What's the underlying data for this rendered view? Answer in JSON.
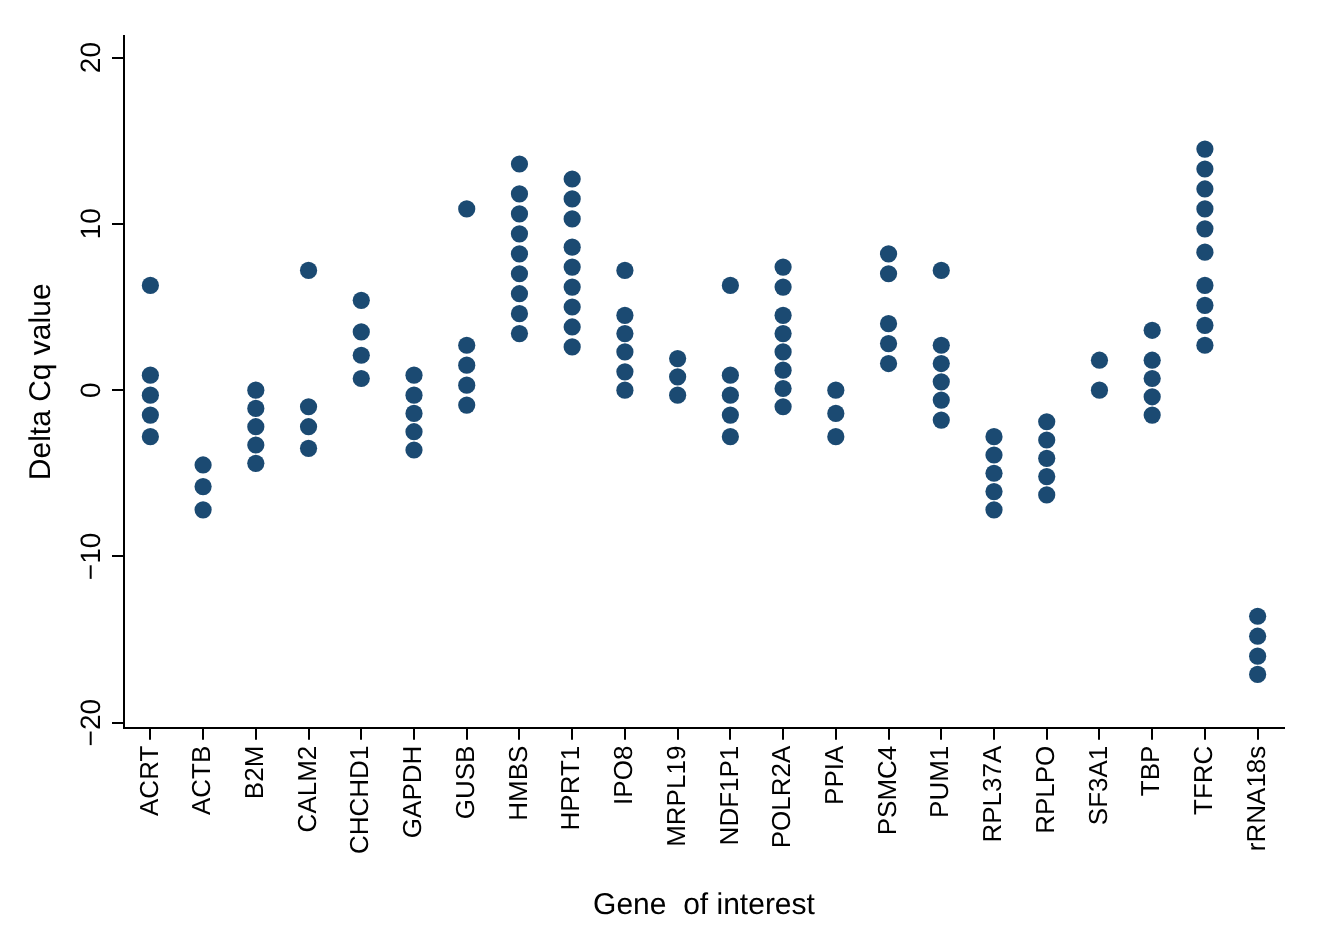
{
  "chart_data": {
    "type": "scatter",
    "xlabel": "Gene  of interest",
    "ylabel": "Delta Cq value",
    "categories": [
      "ACRT",
      "ACTB",
      "B2M",
      "CALM2",
      "CHCHD1",
      "GAPDH",
      "GUSB",
      "HMBS",
      "HPRT1",
      "IPO8",
      "MRPL19",
      "NDF1P1",
      "POLR2A",
      "PPIA",
      "PSMC4",
      "PUM1",
      "RPL37A",
      "RPLPO",
      "SF3A1",
      "TBP",
      "TFRC",
      "rRNA18s"
    ],
    "series": [
      {
        "color": "#1b4a72",
        "x": [
          "ACRT",
          "ACRT",
          "ACRT",
          "ACRT",
          "ACRT",
          "ACTB",
          "ACTB",
          "ACTB",
          "B2M",
          "B2M",
          "B2M",
          "B2M",
          "B2M",
          "CALM2",
          "CALM2",
          "CALM2",
          "CALM2",
          "CHCHD1",
          "CHCHD1",
          "CHCHD1",
          "CHCHD1",
          "GAPDH",
          "GAPDH",
          "GAPDH",
          "GAPDH",
          "GAPDH",
          "GUSB",
          "GUSB",
          "GUSB",
          "GUSB",
          "GUSB",
          "HMBS",
          "HMBS",
          "HMBS",
          "HMBS",
          "HMBS",
          "HMBS",
          "HMBS",
          "HMBS",
          "HMBS",
          "HPRT1",
          "HPRT1",
          "HPRT1",
          "HPRT1",
          "HPRT1",
          "HPRT1",
          "HPRT1",
          "HPRT1",
          "HPRT1",
          "IPO8",
          "IPO8",
          "IPO8",
          "IPO8",
          "IPO8",
          "IPO8",
          "MRPL19",
          "MRPL19",
          "MRPL19",
          "NDF1P1",
          "NDF1P1",
          "NDF1P1",
          "NDF1P1",
          "NDF1P1",
          "POLR2A",
          "POLR2A",
          "POLR2A",
          "POLR2A",
          "POLR2A",
          "POLR2A",
          "POLR2A",
          "POLR2A",
          "PPIA",
          "PPIA",
          "PPIA",
          "PSMC4",
          "PSMC4",
          "PSMC4",
          "PSMC4",
          "PSMC4",
          "PUM1",
          "PUM1",
          "PUM1",
          "PUM1",
          "PUM1",
          "PUM1",
          "RPL37A",
          "RPL37A",
          "RPL37A",
          "RPL37A",
          "RPL37A",
          "RPLPO",
          "RPLPO",
          "RPLPO",
          "RPLPO",
          "RPLPO",
          "SF3A1",
          "SF3A1",
          "TBP",
          "TBP",
          "TBP",
          "TBP",
          "TBP",
          "TFRC",
          "TFRC",
          "TFRC",
          "TFRC",
          "TFRC",
          "TFRC",
          "TFRC",
          "TFRC",
          "TFRC",
          "TFRC",
          "rRNA18s",
          "rRNA18s",
          "rRNA18s",
          "rRNA18s"
        ],
        "values": [
          6.3,
          0.9,
          -0.3,
          -1.5,
          -2.8,
          -4.5,
          -5.8,
          -7.2,
          0,
          -1.1,
          -2.2,
          -3.3,
          -4.4,
          7.2,
          -1,
          -2.2,
          -3.5,
          5.4,
          3.5,
          2.1,
          0.7,
          0.9,
          -0.3,
          -1.4,
          -2.5,
          -3.6,
          10.9,
          2.7,
          1.5,
          0.3,
          -0.9,
          13.6,
          11.8,
          10.6,
          9.4,
          8.2,
          7,
          5.8,
          4.6,
          3.4,
          12.7,
          11.5,
          10.3,
          8.6,
          7.4,
          6.2,
          5,
          3.8,
          2.6,
          7.2,
          4.5,
          3.4,
          2.3,
          1.1,
          0,
          1.9,
          0.8,
          -0.3,
          6.3,
          0.9,
          -0.3,
          -1.5,
          -2.8,
          7.4,
          6.2,
          4.5,
          3.4,
          2.3,
          1.2,
          0.1,
          -1,
          0,
          -1.4,
          -2.8,
          8.2,
          7,
          4,
          2.8,
          1.6,
          7.2,
          2.7,
          1.6,
          0.5,
          -0.6,
          -1.8,
          -2.8,
          -3.9,
          -5,
          -6.1,
          -7.2,
          -1.9,
          -3,
          -4.1,
          -5.2,
          -6.3,
          1.8,
          0,
          3.6,
          1.8,
          0.7,
          -0.4,
          -1.5,
          14.5,
          13.3,
          12.1,
          10.9,
          9.7,
          8.3,
          6.3,
          5.1,
          3.9,
          2.7,
          -13.6,
          -14.8,
          -16,
          -17.1
        ]
      }
    ],
    "ylim": [
      -20.3,
      21.3
    ],
    "yticks": [
      -20,
      -10,
      0,
      10,
      20
    ],
    "grid": false,
    "legend": false,
    "marker": "circle"
  }
}
